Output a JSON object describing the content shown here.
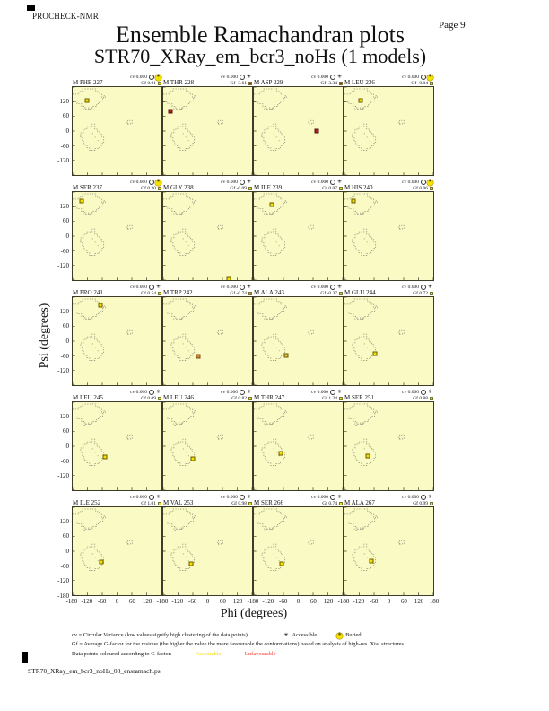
{
  "page": {
    "app_name": "PROCHECK-NMR",
    "page_label": "Page  9",
    "title": "Ensemble Ramachandran plots",
    "subtitle": "STR70_XRay_em_bcr3_noHs (1 models)",
    "footer_filename": "STR70_XRay_em_bcr3_noHs_08_ensramach.ps"
  },
  "icons": {
    "accessible_star": "✳",
    "model_circle": ""
  },
  "legend": {
    "cv_line": "cv = Circular Variance (low values signify high clustering of the data points).",
    "accessible_label": "Accessible",
    "buried_label": "Buried",
    "gf_line": "Gf = Average G-factor for the residue (the higher the value the more favourable the conformations)  based on analysis of high-res. Xtal structures",
    "colour_line_prefix": "Data points coloured according to G-factor:",
    "favourable_label": "Favourable",
    "unfavourable_label": "Unfavourable",
    "favourable_color": "#f0dc00",
    "unfavourable_color": "#ff3526"
  },
  "chart_data": {
    "type": "scatter",
    "description": "Grid of 20 per-residue Ramachandran plots (phi vs psi), one model each",
    "grid": {
      "rows": 5,
      "cols": 4
    },
    "x_range": [
      -180,
      180
    ],
    "y_range": [
      -180,
      180
    ],
    "xlabel": "Phi (degrees)",
    "ylabel": "Psi (degrees)",
    "x_tick_labels": [
      "-180",
      "-120",
      "-60",
      "0",
      "60",
      "120"
    ],
    "x_final_tick": "180",
    "y_tick_labels": [
      "120",
      "60",
      "0",
      "-60",
      "-120"
    ],
    "y_final_tick": "-180",
    "plot_bg_color": "#fafac4",
    "plots": [
      {
        "label": "M PHE 227",
        "cv": "0.000",
        "gf": "0.01",
        "burial": "buried",
        "color": "#f5e200",
        "edge": "#6b5a00",
        "point": {
          "phi": -120,
          "psi": 125
        }
      },
      {
        "label": "M THR 228",
        "cv": "0.000",
        "gf": "-3.61",
        "burial": "accessible",
        "color": "#b32020",
        "edge": "#501010",
        "point": {
          "phi": -150,
          "psi": 80
        }
      },
      {
        "label": "M ASP 229",
        "cv": "0.000",
        "gf": "-3.34",
        "burial": "accessible",
        "color": "#b32020",
        "edge": "#501010",
        "point": {
          "phi": 75,
          "psi": 0
        }
      },
      {
        "label": "M LEU 236",
        "cv": "0.000",
        "gf": "-0.04",
        "burial": "buried",
        "color": "#f5e200",
        "edge": "#6b5a00",
        "point": {
          "phi": -115,
          "psi": 125
        }
      },
      {
        "label": "M SER 237",
        "cv": "0.000",
        "gf": "0.20",
        "burial": "buried",
        "color": "#f5e200",
        "edge": "#6b5a00",
        "point": {
          "phi": -142,
          "psi": 145
        }
      },
      {
        "label": "M GLY 238",
        "cv": "0.000",
        "gf": "-0.09",
        "burial": "accessible",
        "color": "#f5e200",
        "edge": "#6b5a00",
        "point": {
          "phi": 85,
          "psi": -176
        }
      },
      {
        "label": "M ILE 239",
        "cv": "0.000",
        "gf": "0.07",
        "burial": "accessible",
        "color": "#f5e200",
        "edge": "#6b5a00",
        "point": {
          "phi": -108,
          "psi": 130
        }
      },
      {
        "label": "M HIS 240",
        "cv": "0.000",
        "gf": "0.06",
        "burial": "buried",
        "color": "#f5e200",
        "edge": "#6b5a00",
        "point": {
          "phi": -142,
          "psi": 145
        }
      },
      {
        "label": "M PRO 241",
        "cv": "0.000",
        "gf": "0.54",
        "burial": "accessible",
        "color": "#f5e200",
        "edge": "#6b5a00",
        "point": {
          "phi": -68,
          "psi": 148
        }
      },
      {
        "label": "M TRP 242",
        "cv": "0.000",
        "gf": "-0.74",
        "burial": "accessible",
        "color": "#d98a3a",
        "edge": "#7a4a10",
        "point": {
          "phi": -40,
          "psi": -62
        }
      },
      {
        "label": "M ALA 243",
        "cv": "0.000",
        "gf": "-0.37",
        "burial": "accessible",
        "color": "#e0c050",
        "edge": "#6b5a00",
        "point": {
          "phi": -50,
          "psi": -58
        }
      },
      {
        "label": "M GLU 244",
        "cv": "0.000",
        "gf": "0.72",
        "burial": "accessible",
        "color": "#f5e200",
        "edge": "#6b5a00",
        "point": {
          "phi": -58,
          "psi": -50
        }
      },
      {
        "label": "M LEU 245",
        "cv": "0.000",
        "gf": "0.09",
        "burial": "accessible",
        "color": "#f5e200",
        "edge": "#6b5a00",
        "point": {
          "phi": -50,
          "psi": -45
        }
      },
      {
        "label": "M LEU 246",
        "cv": "0.000",
        "gf": "0.82",
        "burial": "accessible",
        "color": "#f5e200",
        "edge": "#6b5a00",
        "point": {
          "phi": -60,
          "psi": -50
        }
      },
      {
        "label": "M THR 247",
        "cv": "0.000",
        "gf": "1.24",
        "burial": "accessible",
        "color": "#f5e200",
        "edge": "#6b5a00",
        "point": {
          "phi": -72,
          "psi": -30
        }
      },
      {
        "label": "M SER 251",
        "cv": "0.000",
        "gf": "0.88",
        "burial": "accessible",
        "color": "#f5e200",
        "edge": "#6b5a00",
        "point": {
          "phi": -85,
          "psi": -40
        }
      },
      {
        "label": "M ILE 252",
        "cv": "0.000",
        "gf": "1.01",
        "burial": "accessible",
        "color": "#f5e200",
        "edge": "#6b5a00",
        "point": {
          "phi": -65,
          "psi": -45
        }
      },
      {
        "label": "M VAL 253",
        "cv": "0.000",
        "gf": "0.98",
        "burial": "accessible",
        "color": "#f5e200",
        "edge": "#6b5a00",
        "point": {
          "phi": -68,
          "psi": -50
        }
      },
      {
        "label": "M SER 266",
        "cv": "0.000",
        "gf": "0.74",
        "burial": "accessible",
        "color": "#f5e200",
        "edge": "#6b5a00",
        "point": {
          "phi": -68,
          "psi": -50
        }
      },
      {
        "label": "M ALA 267",
        "cv": "0.000",
        "gf": "0.99",
        "burial": "accessible",
        "color": "#f5e200",
        "edge": "#6b5a00",
        "point": {
          "phi": -70,
          "psi": -40
        }
      }
    ]
  }
}
